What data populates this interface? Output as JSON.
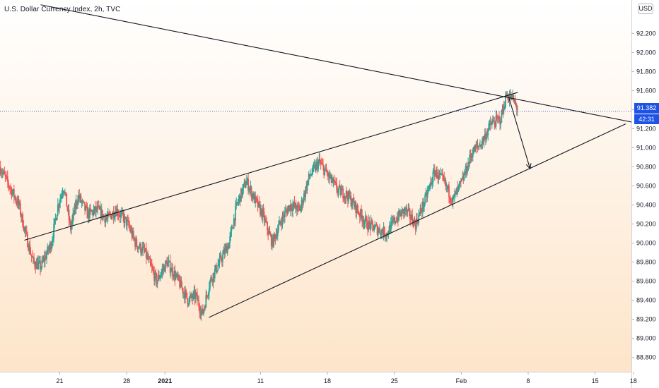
{
  "header": {
    "title": "U.S. Dollar Currency Index, 2h, TVC",
    "currency": "USD"
  },
  "last_price": {
    "value": "91.382",
    "countdown": "42:31",
    "color": "#1e53e5"
  },
  "colors": {
    "up": "#26a69a",
    "down": "#ef5350",
    "lines": "#131722",
    "background_top": "#ffffff",
    "background_bottom": "#fde3c7"
  },
  "chart_data": {
    "type": "candlestick",
    "y_ticks": [
      "88.800",
      "89.000",
      "89.200",
      "89.400",
      "89.600",
      "89.800",
      "90.000",
      "90.200",
      "90.400",
      "90.600",
      "90.800",
      "91.000",
      "91.200",
      "91.400",
      "91.600",
      "91.800",
      "92.000",
      "92.200"
    ],
    "ylim": [
      88.65,
      92.55
    ],
    "x_ticks": [
      {
        "label": "21",
        "day": 21
      },
      {
        "label": "28",
        "day": 28
      },
      {
        "label": "2021",
        "day": 32
      },
      {
        "label": "11",
        "day": 42
      },
      {
        "label": "18",
        "day": 49
      },
      {
        "label": "25",
        "day": 56
      },
      {
        "label": "Feb",
        "day": 63
      },
      {
        "label": "8",
        "day": 70
      },
      {
        "label": "15",
        "day": 77
      },
      {
        "label": "18",
        "day": 81
      }
    ],
    "xlim": [
      14.75,
      80.8
    ],
    "path_anchors": [
      [
        14.8,
        90.8
      ],
      [
        15.8,
        90.6
      ],
      [
        16.8,
        90.4
      ],
      [
        17.5,
        90.1
      ],
      [
        18.3,
        89.8
      ],
      [
        19.1,
        89.75
      ],
      [
        20.2,
        90.0
      ],
      [
        20.9,
        90.4
      ],
      [
        21.5,
        90.6
      ],
      [
        22.2,
        90.15
      ],
      [
        23.0,
        90.5
      ],
      [
        24.0,
        90.3
      ],
      [
        25.0,
        90.35
      ],
      [
        26.0,
        90.25
      ],
      [
        27.0,
        90.35
      ],
      [
        28.2,
        90.2
      ],
      [
        29.0,
        90.0
      ],
      [
        30.0,
        89.9
      ],
      [
        31.2,
        89.6
      ],
      [
        32.3,
        89.8
      ],
      [
        33.5,
        89.6
      ],
      [
        34.5,
        89.4
      ],
      [
        35.3,
        89.45
      ],
      [
        36.0,
        89.25
      ],
      [
        36.8,
        89.6
      ],
      [
        37.8,
        89.8
      ],
      [
        38.8,
        90.0
      ],
      [
        39.6,
        90.4
      ],
      [
        40.6,
        90.65
      ],
      [
        41.5,
        90.45
      ],
      [
        42.3,
        90.3
      ],
      [
        43.3,
        90.0
      ],
      [
        44.3,
        90.25
      ],
      [
        45.2,
        90.4
      ],
      [
        46.2,
        90.35
      ],
      [
        47.2,
        90.7
      ],
      [
        48.2,
        90.85
      ],
      [
        49.2,
        90.7
      ],
      [
        50.2,
        90.55
      ],
      [
        51.2,
        90.5
      ],
      [
        52.2,
        90.35
      ],
      [
        53.2,
        90.2
      ],
      [
        54.2,
        90.15
      ],
      [
        55.3,
        90.1
      ],
      [
        56.2,
        90.25
      ],
      [
        57.2,
        90.35
      ],
      [
        58.3,
        90.2
      ],
      [
        59.3,
        90.45
      ],
      [
        60.3,
        90.75
      ],
      [
        61.2,
        90.65
      ],
      [
        62.2,
        90.45
      ],
      [
        63.2,
        90.65
      ],
      [
        64.2,
        90.95
      ],
      [
        65.2,
        91.05
      ],
      [
        66.2,
        91.25
      ],
      [
        67.2,
        91.3
      ],
      [
        67.8,
        91.55
      ],
      [
        68.4,
        91.52
      ],
      [
        68.9,
        91.42
      ]
    ],
    "trendlines": [
      {
        "name": "upper-resistance",
        "points": [
          [
            19.0,
            92.5
          ],
          [
            80.8,
            91.27
          ]
        ]
      },
      {
        "name": "rising-top",
        "points": [
          [
            17.3,
            90.03
          ],
          [
            68.9,
            91.58
          ]
        ]
      },
      {
        "name": "rising-bottom",
        "points": [
          [
            36.6,
            89.22
          ],
          [
            80.2,
            91.25
          ]
        ]
      }
    ],
    "arrow": {
      "points": [
        [
          68.0,
          91.52
        ],
        [
          70.2,
          90.78
        ]
      ]
    },
    "last_price_line": 91.382
  }
}
